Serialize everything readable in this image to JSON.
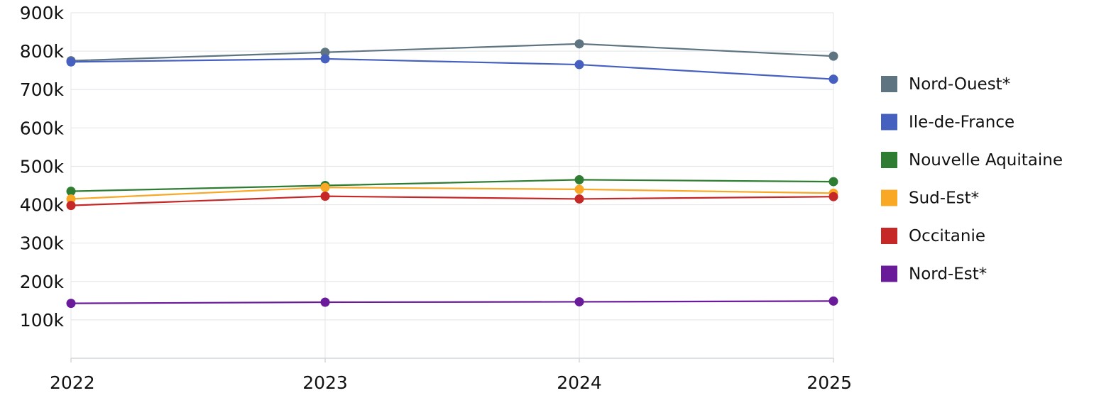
{
  "chart_data": {
    "type": "line",
    "title": "",
    "xlabel": "",
    "ylabel": "",
    "x": [
      "2022",
      "2023",
      "2024",
      "2025"
    ],
    "ylim": [
      0,
      900000
    ],
    "y_ticks": [
      {
        "value": 100000,
        "label": "100k"
      },
      {
        "value": 200000,
        "label": "200k"
      },
      {
        "value": 300000,
        "label": "300k"
      },
      {
        "value": 400000,
        "label": "400k"
      },
      {
        "value": 500000,
        "label": "500k"
      },
      {
        "value": 600000,
        "label": "600k"
      },
      {
        "value": 700000,
        "label": "700k"
      },
      {
        "value": 800000,
        "label": "800k"
      },
      {
        "value": 900000,
        "label": "900k"
      }
    ],
    "grid": true,
    "legend_position": "right",
    "series": [
      {
        "name": "Nord-Ouest*",
        "color": "#5f7481",
        "values": [
          775000,
          797000,
          819000,
          787000
        ]
      },
      {
        "name": "Ile-de-France",
        "color": "#4660bf",
        "values": [
          772000,
          780000,
          765000,
          727000
        ]
      },
      {
        "name": "Nouvelle Aquitaine",
        "color": "#2e7d32",
        "values": [
          435000,
          450000,
          465000,
          460000
        ]
      },
      {
        "name": "Sud-Est*",
        "color": "#f9a825",
        "values": [
          415000,
          445000,
          440000,
          430000
        ]
      },
      {
        "name": "Occitanie",
        "color": "#c62828",
        "values": [
          398000,
          422000,
          415000,
          421000
        ]
      },
      {
        "name": "Nord-Est*",
        "color": "#6a1b9a",
        "values": [
          143000,
          146000,
          147000,
          149000
        ]
      }
    ]
  }
}
